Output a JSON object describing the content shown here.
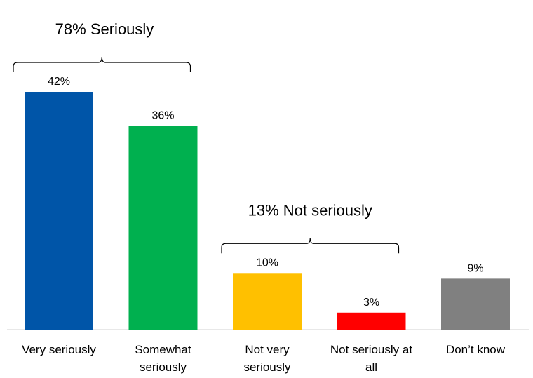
{
  "chart_data": {
    "type": "bar",
    "categories": [
      [
        "Very seriously"
      ],
      [
        "Somewhat",
        "seriously"
      ],
      [
        "Not very",
        "seriously"
      ],
      [
        "Not seriously at",
        "all"
      ],
      [
        "Don’t know"
      ]
    ],
    "values": [
      42,
      36,
      10,
      3,
      9
    ],
    "value_labels": [
      "42%",
      "36%",
      "10%",
      "3%",
      "9%"
    ],
    "colors": [
      "#0055a8",
      "#00b04f",
      "#ffc000",
      "#ff0000",
      "#808080"
    ],
    "ylim": [
      0,
      42
    ],
    "grid": false,
    "annotations": [
      {
        "text": "78% Seriously",
        "from_category": 0,
        "to_category": 1
      },
      {
        "text": "13% Not seriously",
        "from_category": 2,
        "to_category": 3
      }
    ]
  }
}
